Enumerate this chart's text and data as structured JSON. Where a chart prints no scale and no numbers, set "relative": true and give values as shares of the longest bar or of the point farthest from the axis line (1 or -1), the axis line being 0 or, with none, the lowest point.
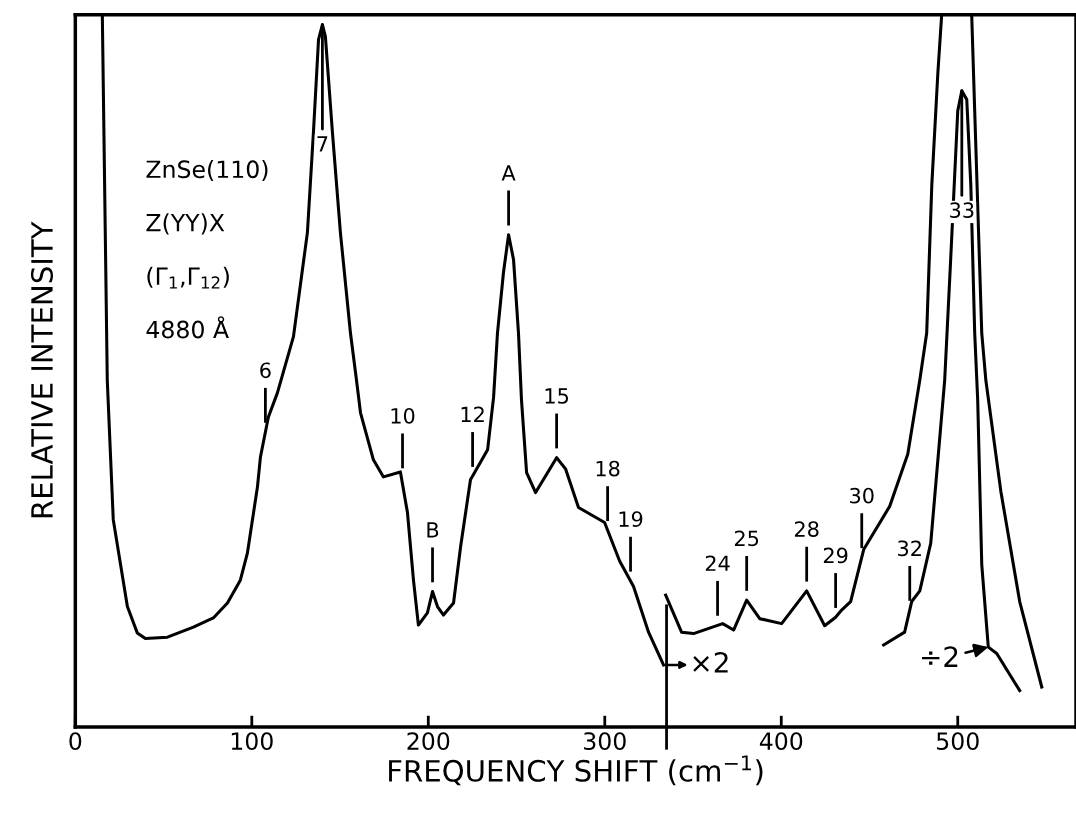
{
  "chart_data": {
    "type": "line",
    "relative": true,
    "xlabel": "FREQUENCY SHIFT (cm$^{−1}$)",
    "ylabel": "RELATIVE INTENSITY",
    "xlim": [
      0,
      567
    ],
    "xticks": [
      0,
      100,
      200,
      300,
      400,
      500
    ],
    "grid": false,
    "legend": false,
    "marker": "none",
    "line_style": "solid",
    "series": [
      {
        "color": "#000000",
        "x": [
          15.3,
          18.1,
          21.5,
          29.5,
          35.1,
          39.7,
          52.2,
          66.9,
          78.2,
          86.2,
          93.5,
          97.5,
          103.2,
          104.9,
          109.4,
          114.5,
          123.6,
          131.5,
          134.9,
          137.8,
          140.0,
          141.7,
          145.7,
          150.2,
          155.9,
          159.3,
          161.6,
          168.9,
          174.6,
          184.2,
          188.2,
          191.6,
          194.4,
          199.5,
          202.4,
          205.2,
          208.6,
          214.3,
          218.3,
          223.9,
          233.6,
          237.0,
          239.2,
          242.6,
          245.5,
          248.3,
          251.1,
          252.8,
          255.7,
          260.8,
          272.7,
          277.8,
          285.1,
          299.9,
          308.4,
          316.3,
          324.8,
          333.3
        ],
        "values": [
          1.0,
          0.487,
          0.291,
          0.169,
          0.132,
          0.124,
          0.126,
          0.14,
          0.153,
          0.174,
          0.206,
          0.244,
          0.337,
          0.379,
          0.435,
          0.469,
          0.548,
          0.694,
          0.834,
          0.965,
          0.986,
          0.969,
          0.834,
          0.694,
          0.553,
          0.487,
          0.441,
          0.375,
          0.351,
          0.358,
          0.301,
          0.206,
          0.143,
          0.16,
          0.19,
          0.169,
          0.157,
          0.174,
          0.253,
          0.347,
          0.389,
          0.463,
          0.553,
          0.638,
          0.691,
          0.656,
          0.553,
          0.459,
          0.357,
          0.329,
          0.378,
          0.362,
          0.308,
          0.287,
          0.233,
          0.197,
          0.133,
          0.087
        ]
      },
      {
        "color": "#000000",
        "x": [
          334.5,
          343.5,
          350.3,
          366.8,
          373.0,
          380.4,
          387.8,
          400.2,
          414.4,
          424.6,
          430.8,
          434.2,
          439.3,
          446.7,
          461.5,
          471.7,
          478.5,
          482.4,
          485.3,
          488.7,
          490.9,
          499.0,
          507.9,
          509.6,
          513.6,
          515.9,
          524.4,
          535.1,
          547.6
        ],
        "values": [
          0.185,
          0.133,
          0.131,
          0.145,
          0.136,
          0.178,
          0.152,
          0.145,
          0.191,
          0.142,
          0.154,
          0.164,
          0.176,
          0.249,
          0.31,
          0.383,
          0.487,
          0.553,
          0.761,
          0.917,
          1.0,
          null,
          1.0,
          0.865,
          0.553,
          0.487,
          0.331,
          0.176,
          0.056
        ]
      },
      {
        "color": "#000000",
        "x": [
          458.0,
          469.9,
          473.9,
          478.5,
          484.7,
          492.6,
          496.0,
          500.0,
          502.3,
          505.1,
          507.4,
          509.6,
          511.3,
          513.6,
          517.3,
          522.1,
          535.1
        ],
        "values": [
          0.115,
          0.133,
          0.176,
          0.191,
          0.258,
          0.487,
          0.657,
          0.865,
          0.893,
          0.881,
          0.761,
          0.553,
          0.459,
          0.228,
          0.112,
          0.103,
          0.051
        ]
      }
    ],
    "ref_lines": [
      {
        "axis": "x",
        "value": 335,
        "label": "×2"
      }
    ],
    "annotations": [
      "ZnSe(110)",
      "Z(YY)X",
      "(Γ$_{1}$,Γ$_{12}$)",
      "4880 Å",
      {
        "text": "6",
        "x": 107.7,
        "y": 0.414
      },
      {
        "text": "7",
        "x": 140.0,
        "y": 0.986
      },
      {
        "text": "10",
        "x": 185.4,
        "y": 0.35
      },
      {
        "text": "B",
        "x": 202.4,
        "y": 0.19
      },
      {
        "text": "12",
        "x": 225.1,
        "y": 0.352
      },
      {
        "text": "A",
        "x": 245.5,
        "y": 0.691
      },
      {
        "text": "15",
        "x": 272.7,
        "y": 0.378
      },
      {
        "text": "18",
        "x": 301.6,
        "y": 0.276
      },
      {
        "text": "19",
        "x": 314.6,
        "y": 0.205
      },
      {
        "text": "24",
        "x": 363.9,
        "y": 0.143
      },
      {
        "text": "25",
        "x": 380.4,
        "y": 0.178
      },
      {
        "text": "28",
        "x": 414.4,
        "y": 0.191
      },
      {
        "text": "29",
        "x": 430.8,
        "y": 0.154
      },
      {
        "text": "30",
        "x": 445.6,
        "y": 0.238
      },
      {
        "text": "32",
        "x": 472.8,
        "y": 0.164
      },
      {
        "text": "33",
        "x": 502.3,
        "y": 0.893
      },
      {
        "text": "÷2",
        "x": 517.3,
        "y": 0.112
      }
    ]
  }
}
